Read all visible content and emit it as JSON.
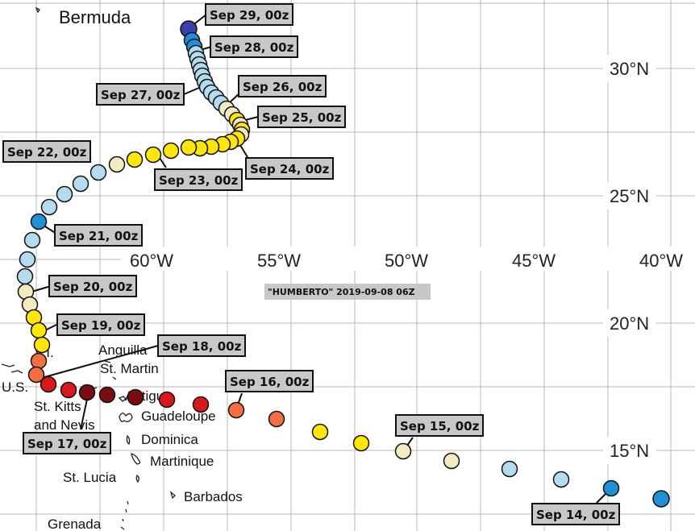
{
  "map_title": "\"HUMBERTO\" 2019-09-08 06Z",
  "coordinate_labels": {
    "latitude": [
      {
        "id": "lat-30",
        "text": "30°N"
      },
      {
        "id": "lat-25",
        "text": "25°N"
      },
      {
        "id": "lat-20",
        "text": "20°N"
      },
      {
        "id": "lat-15",
        "text": "15°N"
      }
    ],
    "longitude": [
      {
        "id": "lon-60",
        "text": "60°W"
      },
      {
        "id": "lon-55",
        "text": "55°W"
      },
      {
        "id": "lon-50",
        "text": "50°W"
      },
      {
        "id": "lon-45",
        "text": "45°W"
      },
      {
        "id": "lon-40",
        "text": "40°W"
      }
    ]
  },
  "places": [
    {
      "id": "bermuda",
      "text": "Bermuda"
    },
    {
      "id": "bvi",
      "text": ".V.I."
    },
    {
      "id": "anguilla",
      "text": "Anguilla"
    },
    {
      "id": "st-martin",
      "text": "St. Martin"
    },
    {
      "id": "us",
      "text": "U.S."
    },
    {
      "id": "antigua",
      "text": "Antigua"
    },
    {
      "id": "st-kitts",
      "text": "St. Kitts"
    },
    {
      "id": "and-nevis",
      "text": "and Nevis"
    },
    {
      "id": "guadeloupe",
      "text": "Guadeloupe"
    },
    {
      "id": "dominica",
      "text": "Dominica"
    },
    {
      "id": "martinique",
      "text": "Martinique"
    },
    {
      "id": "st-lucia",
      "text": "St. Lucia"
    },
    {
      "id": "barbados",
      "text": "Barbados"
    },
    {
      "id": "grenada",
      "text": "Grenada"
    }
  ],
  "date_labels": [
    {
      "id": "sep29",
      "text": "Sep 29, 00z"
    },
    {
      "id": "sep28",
      "text": "Sep 28, 00z"
    },
    {
      "id": "sep27",
      "text": "Sep 27, 00z"
    },
    {
      "id": "sep26",
      "text": "Sep 26, 00z"
    },
    {
      "id": "sep25",
      "text": "Sep 25, 00z"
    },
    {
      "id": "sep24",
      "text": "Sep 24, 00z"
    },
    {
      "id": "sep23",
      "text": "Sep 23, 00z"
    },
    {
      "id": "sep22",
      "text": "Sep 22, 00z"
    },
    {
      "id": "sep21",
      "text": "Sep 21, 00z"
    },
    {
      "id": "sep20",
      "text": "Sep 20, 00z"
    },
    {
      "id": "sep19",
      "text": "Sep 19, 00z"
    },
    {
      "id": "sep18",
      "text": "Sep 18, 00z"
    },
    {
      "id": "sep17",
      "text": "Sep 17, 00z"
    },
    {
      "id": "sep16",
      "text": "Sep 16, 00z"
    },
    {
      "id": "sep15",
      "text": "Sep 15, 00z"
    },
    {
      "id": "sep14",
      "text": "Sep 14, 00z"
    }
  ],
  "colors": {
    "dark_red": "#7a0c12",
    "red": "#d7191c",
    "orange": "#f46d43",
    "light_orange": "#fdae61",
    "yellow": "#ffe60a",
    "cream": "#f2ebc2",
    "light_blue": "#b4dcef",
    "blue": "#1f8fd6",
    "dark_blue": "#3a3fb0"
  },
  "track_colors": [
    "dark_blue",
    "blue",
    "blue",
    "light_blue",
    "light_blue",
    "cream",
    "light_blue",
    "light_blue",
    "yellow",
    "yellow",
    "orange",
    "red",
    "red",
    "dark_red",
    "dark_red",
    "dark_red",
    "red",
    "red",
    "orange",
    "orange",
    "orange",
    "yellow",
    "yellow",
    "yellow",
    "cream",
    "cream",
    "light_blue",
    "light_blue",
    "light_blue",
    "blue",
    "light_blue",
    "light_blue",
    "light_blue",
    "light_blue",
    "light_blue",
    "cream",
    "cream",
    "yellow",
    "yellow",
    "yellow",
    "yellow",
    "yellow",
    "yellow",
    "yellow",
    "yellow",
    "cream",
    "cream",
    "cream",
    "light_blue",
    "light_blue",
    "light_blue",
    "light_blue",
    "light_blue",
    "light_blue",
    "light_blue",
    "light_blue",
    "blue",
    "blue",
    "blue",
    "dark_blue"
  ]
}
